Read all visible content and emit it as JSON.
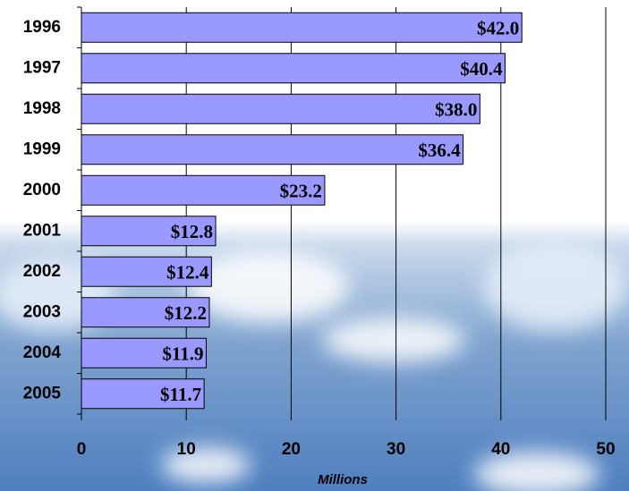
{
  "chart_data": {
    "type": "hbar",
    "categories": [
      "1996",
      "1997",
      "1998",
      "1999",
      "2000",
      "2001",
      "2002",
      "2003",
      "2004",
      "2005"
    ],
    "values": [
      42.0,
      40.4,
      38.0,
      36.4,
      23.2,
      12.8,
      12.4,
      12.2,
      11.9,
      11.7
    ],
    "value_labels": [
      "$42.0",
      "$40.4",
      "$38.0",
      "$36.4",
      "$23.2",
      "$12.8",
      "$12.4",
      "$12.2",
      "$11.9",
      "$11.7"
    ],
    "color": "#9999ff",
    "xlabel": "Millions",
    "xlim": [
      0,
      50
    ],
    "xticks": [
      0,
      10,
      20,
      30,
      40,
      50
    ],
    "grid": true
  }
}
